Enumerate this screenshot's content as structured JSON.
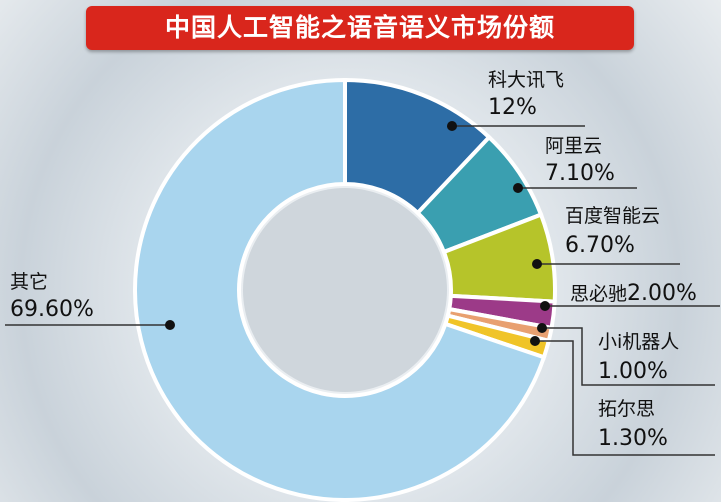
{
  "chart_data": {
    "type": "pie",
    "variant": "donut",
    "title": "中国人工智能之语音语义市场份额",
    "unit": "%",
    "slices": [
      {
        "label": "科大讯飞",
        "value": 12,
        "value_label": "12%",
        "color": "#2d6da6"
      },
      {
        "label": "阿里云",
        "value": 7.1,
        "value_label": "7.10%",
        "color": "#3a9fb0"
      },
      {
        "label": "百度智能云",
        "value": 6.7,
        "value_label": "6.70%",
        "color": "#b6c42a"
      },
      {
        "label": "思必驰",
        "value": 2.0,
        "value_label": "2.00%",
        "color": "#9c3a88"
      },
      {
        "label": "小i机器人",
        "value": 1.0,
        "value_label": "1.00%",
        "color": "#e8a070"
      },
      {
        "label": "拓尔思",
        "value": 1.3,
        "value_label": "1.30%",
        "color": "#f0c428"
      },
      {
        "label": "其它",
        "value": 69.6,
        "value_label": "69.60%",
        "color": "#a9d5ee"
      }
    ]
  }
}
